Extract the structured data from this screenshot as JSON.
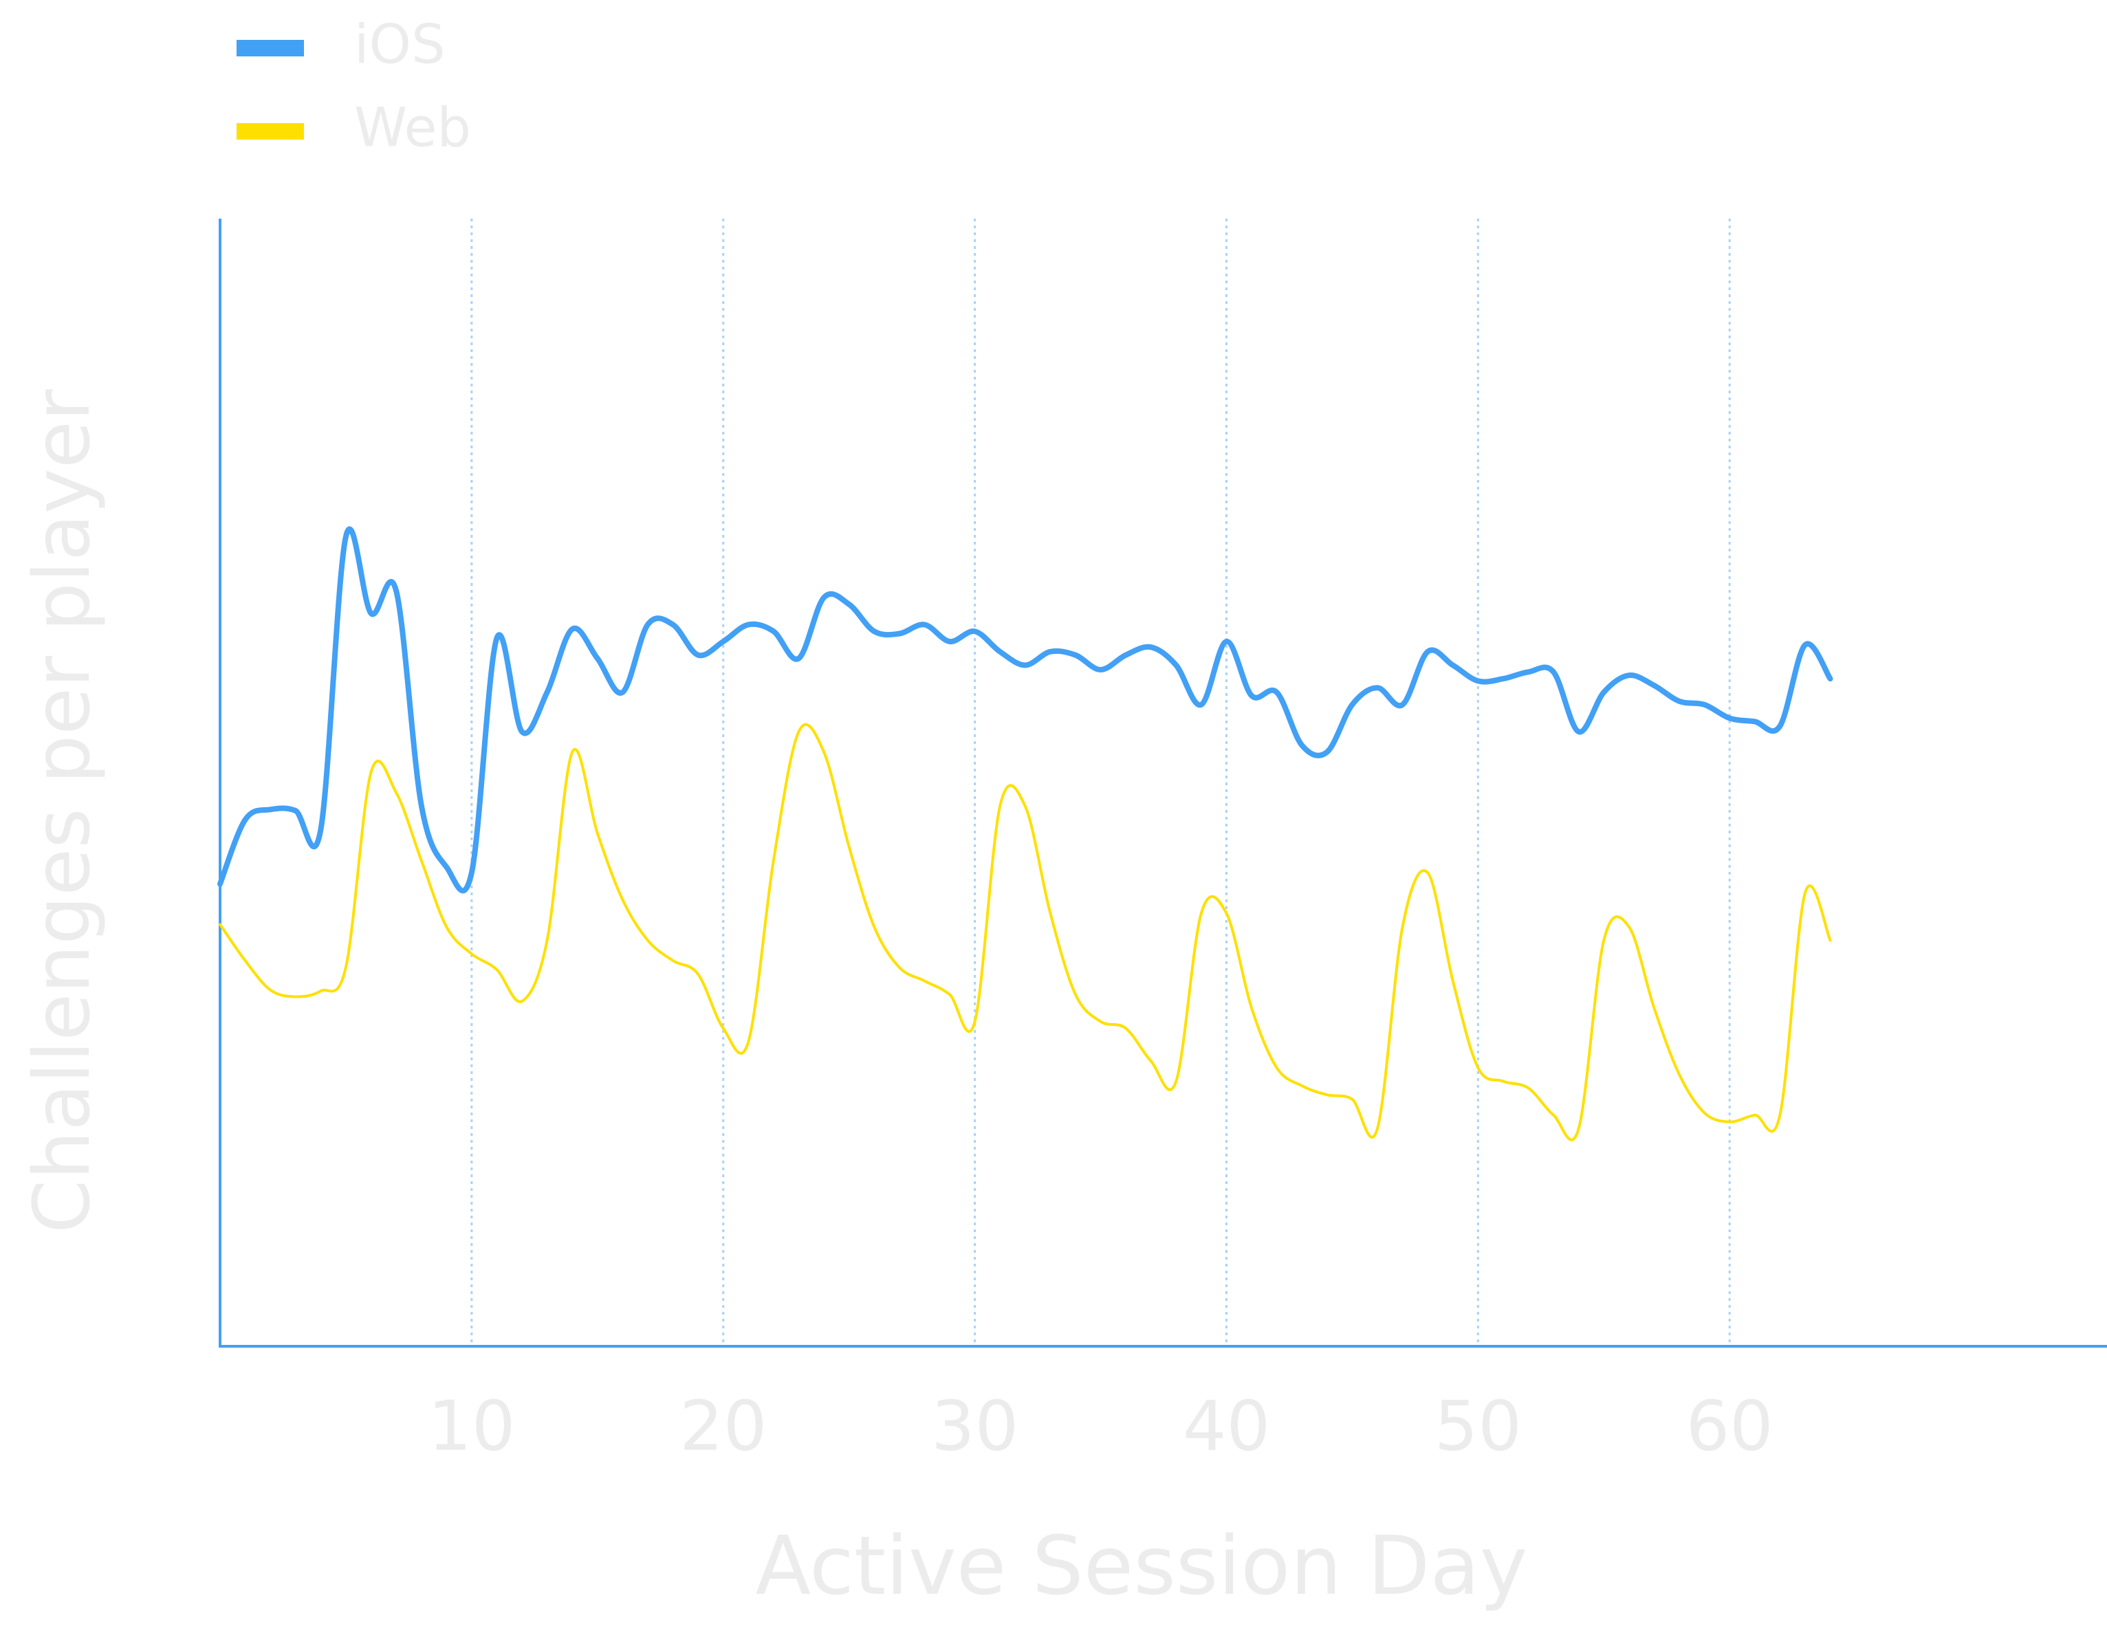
{
  "chart_data": {
    "type": "line",
    "x_label": "Active Session Day",
    "y_label": "Challenges per player",
    "x": [
      0,
      1,
      2,
      3,
      4,
      5,
      6,
      7,
      8,
      9,
      10,
      11,
      12,
      13,
      14,
      15,
      16,
      17,
      18,
      19,
      20,
      21,
      22,
      23,
      24,
      25,
      26,
      27,
      28,
      29,
      30,
      31,
      32,
      33,
      34,
      35,
      36,
      37,
      38,
      39,
      40,
      41,
      42,
      43,
      44,
      45,
      46,
      47,
      48,
      49,
      50,
      51,
      52,
      53,
      54,
      55,
      56,
      57,
      58,
      59,
      60,
      61,
      62,
      63,
      64
    ],
    "series": [
      {
        "name": "iOS",
        "color": "#42a0f5",
        "width": 8,
        "values": [
          41,
          46.7,
          47.6,
          47.5,
          45.8,
          71.8,
          65,
          67,
          48,
          42.5,
          42,
          62.8,
          54.5,
          58,
          63.6,
          61,
          58,
          64,
          64,
          61.3,
          62.5,
          64,
          63.4,
          61,
          66.4,
          65.8,
          63.4,
          63.2,
          64,
          62.5,
          63.4,
          61.6,
          60.4,
          61.6,
          61.3,
          60,
          61.3,
          62,
          60.4,
          56.9,
          62.5,
          57.7,
          58,
          53.3,
          52.7,
          56.9,
          58.4,
          56.9,
          61.6,
          60.4,
          59,
          59.2,
          59.8,
          59.8,
          54.5,
          58,
          59.5,
          58.6,
          57.2,
          56.9,
          55.7,
          55.4,
          55,
          62.2,
          59.2
        ]
      },
      {
        "name": "Web",
        "color": "#fde000",
        "width": 4,
        "values": [
          37.4,
          34.2,
          31.6,
          31,
          31.5,
          33.6,
          50.9,
          49.1,
          43.1,
          37.2,
          34.8,
          33.4,
          30.6,
          36,
          52.7,
          45.5,
          39.6,
          36,
          34.2,
          33,
          28.2,
          27,
          43.1,
          54.5,
          52.7,
          44.3,
          37.2,
          33.6,
          32.4,
          31.2,
          28.8,
          47.9,
          47.9,
          38.4,
          31.2,
          28.8,
          28.2,
          25.3,
          23.5,
          38.4,
          38.4,
          30,
          24.7,
          23.1,
          22.3,
          21.9,
          19.3,
          37.2,
          42,
          32.4,
          24.7,
          23.5,
          22.9,
          20.5,
          19.3,
          36,
          37.2,
          30,
          24.1,
          20.7,
          19.9,
          20.5,
          20.5,
          40.2,
          36
        ]
      }
    ],
    "xlim": [
      0,
      75
    ],
    "xticks": [
      10,
      20,
      30,
      40,
      50,
      60
    ],
    "ylim": [
      0,
      100
    ],
    "grid": true,
    "axis_color": "#42a0f5",
    "legend": "top-left"
  }
}
